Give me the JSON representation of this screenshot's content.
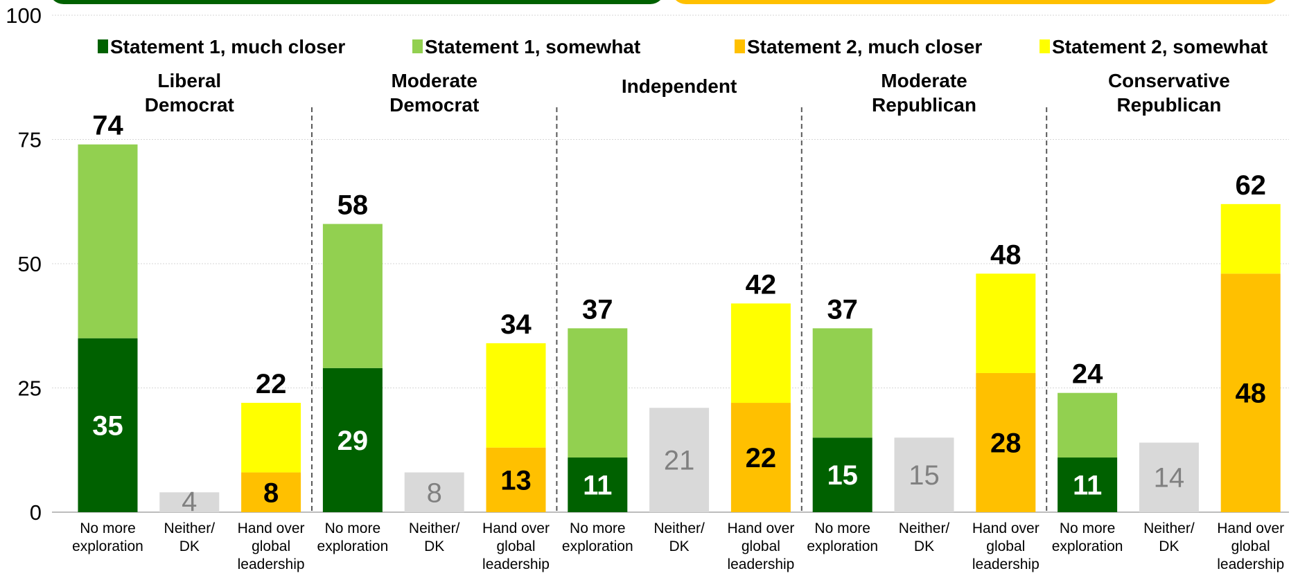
{
  "chart_data": {
    "type": "bar",
    "stacked": true,
    "ylim": [
      0,
      100
    ],
    "yticks": [
      0,
      25,
      50,
      75,
      100
    ],
    "grid": true,
    "legend": "top",
    "legend_items": [
      {
        "label": "Statement 1, much closer",
        "color": "#006100"
      },
      {
        "label": "Statement 1, somewhat",
        "color": "#92D050"
      },
      {
        "label": "Statement 2, much closer",
        "color": "#FFC000"
      },
      {
        "label": "Statement 2, somewhat",
        "color": "#FFFF00"
      }
    ],
    "groups": [
      {
        "name_lines": [
          "Liberal",
          "Democrat"
        ],
        "bars": [
          {
            "label_lines": [
              "No more",
              "exploration"
            ],
            "kind": "s1",
            "much": 35,
            "total": 74
          },
          {
            "label_lines": [
              "Neither/",
              "DK"
            ],
            "kind": "neither",
            "value": 4
          },
          {
            "label_lines": [
              "Hand over",
              "global",
              "leadership"
            ],
            "kind": "s2",
            "much": 8,
            "total": 22
          }
        ]
      },
      {
        "name_lines": [
          "Moderate",
          "Democrat"
        ],
        "bars": [
          {
            "label_lines": [
              "No more",
              "exploration"
            ],
            "kind": "s1",
            "much": 29,
            "total": 58
          },
          {
            "label_lines": [
              "Neither/",
              "DK"
            ],
            "kind": "neither",
            "value": 8
          },
          {
            "label_lines": [
              "Hand over",
              "global",
              "leadership"
            ],
            "kind": "s2",
            "much": 13,
            "total": 34
          }
        ]
      },
      {
        "name_lines": [
          "Independent"
        ],
        "bars": [
          {
            "label_lines": [
              "No more",
              "exploration"
            ],
            "kind": "s1",
            "much": 11,
            "total": 37
          },
          {
            "label_lines": [
              "Neither/",
              "DK"
            ],
            "kind": "neither",
            "value": 21
          },
          {
            "label_lines": [
              "Hand over",
              "global",
              "leadership"
            ],
            "kind": "s2",
            "much": 22,
            "total": 42
          }
        ]
      },
      {
        "name_lines": [
          "Moderate",
          "Republican"
        ],
        "bars": [
          {
            "label_lines": [
              "No more",
              "exploration"
            ],
            "kind": "s1",
            "much": 15,
            "total": 37
          },
          {
            "label_lines": [
              "Neither/",
              "DK"
            ],
            "kind": "neither",
            "value": 15
          },
          {
            "label_lines": [
              "Hand over",
              "global",
              "leadership"
            ],
            "kind": "s2",
            "much": 28,
            "total": 48
          }
        ]
      },
      {
        "name_lines": [
          "Conservative",
          "Republican"
        ],
        "bars": [
          {
            "label_lines": [
              "No more",
              "exploration"
            ],
            "kind": "s1",
            "much": 11,
            "total": 24
          },
          {
            "label_lines": [
              "Neither/",
              "DK"
            ],
            "kind": "neither",
            "value": 14
          },
          {
            "label_lines": [
              "Hand over",
              "global",
              "leadership"
            ],
            "kind": "s2",
            "much": 48,
            "total": 62
          }
        ]
      }
    ],
    "colors": {
      "s1_much": "#006100",
      "s1_somewhat": "#92D050",
      "s2_much": "#FFC000",
      "s2_somewhat": "#FFFF00",
      "neither": "#D9D9D9",
      "neither_label": "#808080",
      "banner_left": "#006100",
      "banner_right": "#FFC000"
    }
  }
}
